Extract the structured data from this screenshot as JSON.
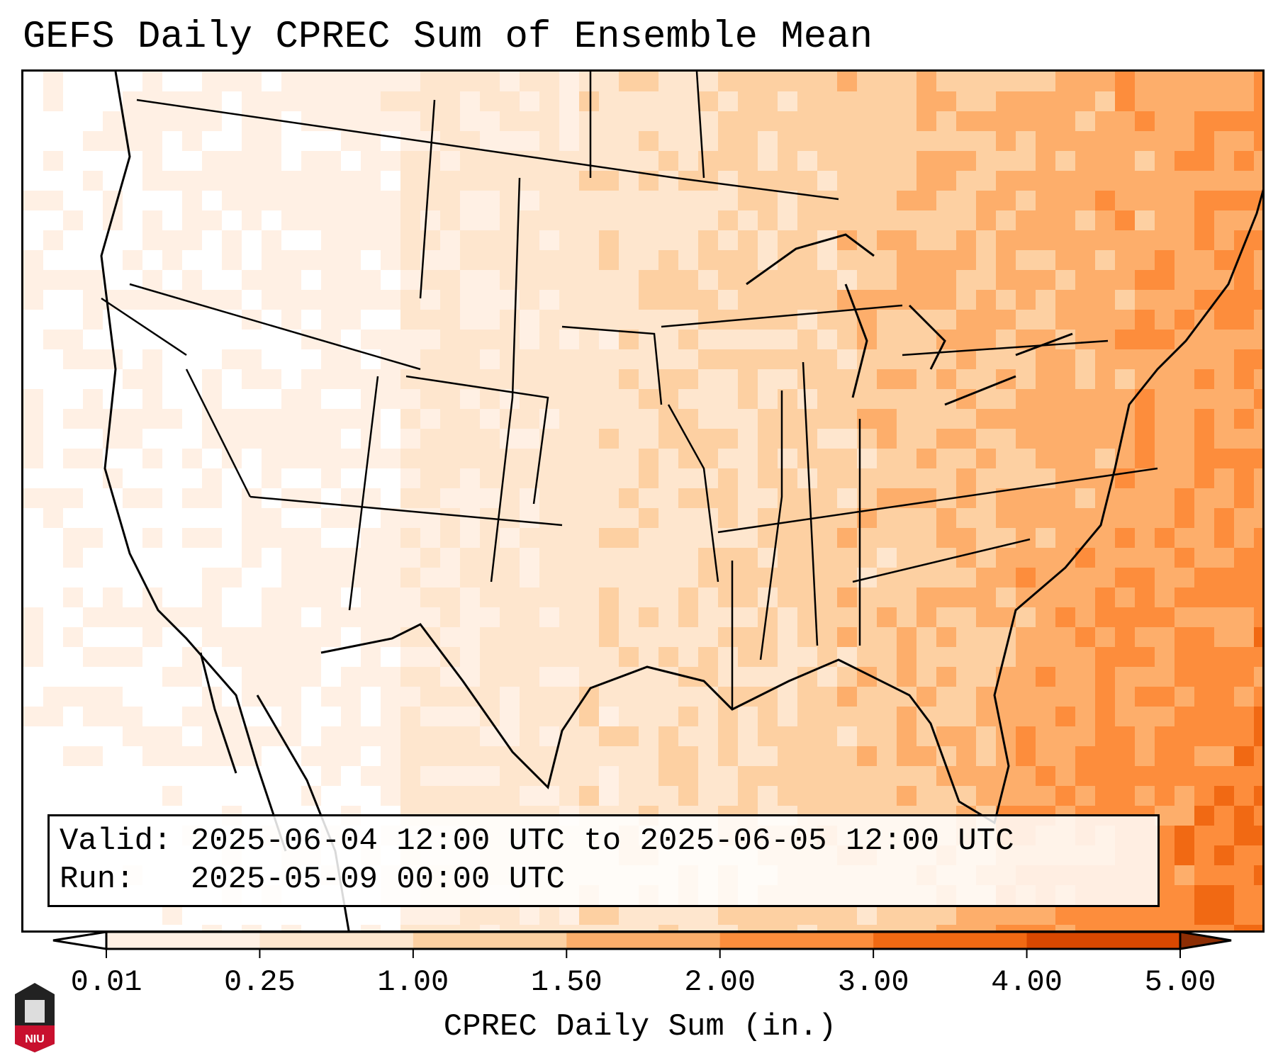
{
  "title": "GEFS Daily CPREC Sum of Ensemble Mean",
  "info": {
    "valid": "Valid: 2025-06-04 12:00 UTC to 2025-06-05 12:00 UTC",
    "run": "Run:   2025-05-09 00:00 UTC"
  },
  "colorbar": {
    "label": "CPREC Daily Sum (in.)",
    "ticks": [
      "0.01",
      "0.25",
      "1.00",
      "1.50",
      "2.00",
      "3.00",
      "4.00",
      "5.00"
    ],
    "colors": [
      "#fff0e4",
      "#fee6ce",
      "#fdd0a2",
      "#fdae6b",
      "#fd8d3c",
      "#f16913",
      "#d94801"
    ],
    "under_color": "#ffffff",
    "over_color": "#8c2d04"
  },
  "logo": {
    "text": "NIU"
  }
}
